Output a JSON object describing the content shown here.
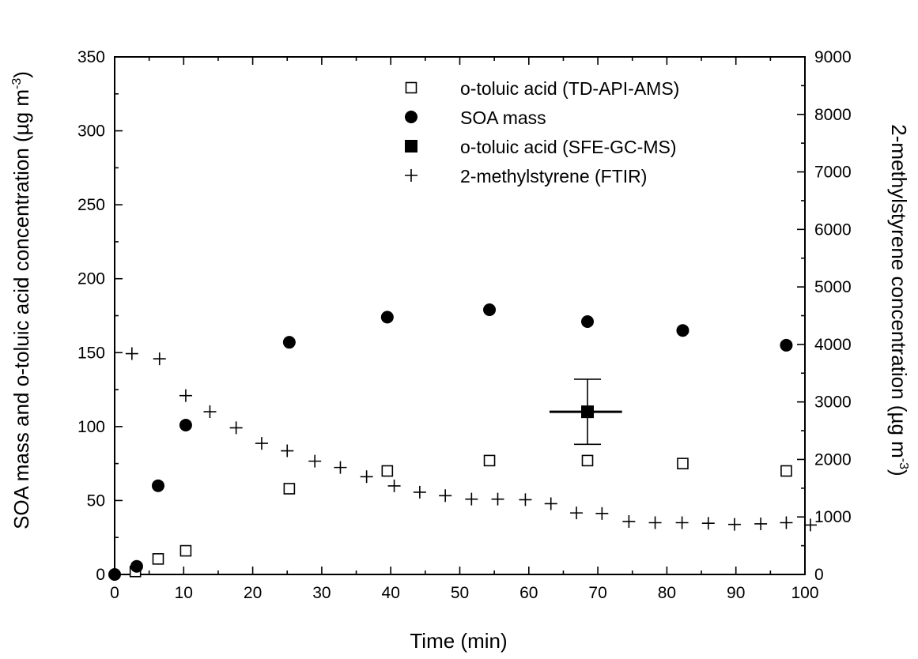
{
  "chart_data": {
    "type": "scatter",
    "title": "",
    "xlabel": "Time (min)",
    "ylabel_left_main": "SOA mass and o-toluic acid concentration (µg m",
    "ylabel_left_sup": "-3",
    "ylabel_left_end": ")",
    "ylabel_right_main": "2-methylstyrene concentration (µg m",
    "ylabel_right_sup": "-3",
    "ylabel_right_end": ")",
    "xlim": [
      0,
      100
    ],
    "ylim_left": [
      0,
      350
    ],
    "ylim_right": [
      0,
      9000
    ],
    "x_ticks": [
      0,
      10,
      20,
      30,
      40,
      50,
      60,
      70,
      80,
      90,
      100
    ],
    "y_left_ticks": [
      0,
      50,
      100,
      150,
      200,
      250,
      300,
      350
    ],
    "y_right_ticks": [
      0,
      1000,
      2000,
      3000,
      4000,
      5000,
      6000,
      7000,
      8000,
      9000
    ],
    "legend_placement": "top-right",
    "grid": false,
    "series": [
      {
        "name": "o-toluic acid (TD-API-AMS)",
        "marker": "open-square",
        "axis": "left",
        "color": "#000000",
        "points": [
          [
            3,
            2
          ],
          [
            6.3,
            10.5
          ],
          [
            10.3,
            16
          ],
          [
            25.3,
            58
          ],
          [
            39.5,
            70
          ],
          [
            54.3,
            77
          ],
          [
            68.5,
            77
          ],
          [
            82.3,
            75
          ],
          [
            97.3,
            70
          ]
        ]
      },
      {
        "name": "SOA mass",
        "marker": "filled-circle",
        "axis": "left",
        "color": "#000000",
        "points": [
          [
            0,
            0
          ],
          [
            3.2,
            5.5
          ],
          [
            6.3,
            60
          ],
          [
            10.3,
            101
          ],
          [
            25.3,
            157
          ],
          [
            39.5,
            174
          ],
          [
            54.3,
            179
          ],
          [
            68.5,
            171
          ],
          [
            82.3,
            165
          ],
          [
            97.3,
            155
          ]
        ]
      },
      {
        "name": "o-toluic acid (SFE-GC-MS)",
        "marker": "filled-square",
        "axis": "left",
        "color": "#000000",
        "points": [
          [
            68.5,
            110
          ]
        ],
        "x_error": [
          [
            63,
            73.5
          ]
        ],
        "y_error": [
          [
            88,
            132
          ]
        ]
      },
      {
        "name": "2-methylstyrene (FTIR)",
        "marker": "plus",
        "axis": "right",
        "color": "#000000",
        "points": [
          [
            2.5,
            3840
          ],
          [
            6.5,
            3750
          ],
          [
            10.3,
            3110
          ],
          [
            13.8,
            2830
          ],
          [
            17.6,
            2550
          ],
          [
            21.3,
            2280
          ],
          [
            25,
            2150
          ],
          [
            29,
            1970
          ],
          [
            32.7,
            1860
          ],
          [
            36.5,
            1700
          ],
          [
            40.5,
            1540
          ],
          [
            44.2,
            1430
          ],
          [
            47.9,
            1370
          ],
          [
            51.7,
            1310
          ],
          [
            55.5,
            1310
          ],
          [
            59.5,
            1300
          ],
          [
            63.2,
            1230
          ],
          [
            66.9,
            1070
          ],
          [
            70.6,
            1060
          ],
          [
            74.5,
            920
          ],
          [
            78.3,
            900
          ],
          [
            82.2,
            900
          ],
          [
            86,
            890
          ],
          [
            89.8,
            870
          ],
          [
            93.6,
            880
          ],
          [
            97.3,
            900
          ],
          [
            100.8,
            860
          ]
        ]
      }
    ]
  }
}
